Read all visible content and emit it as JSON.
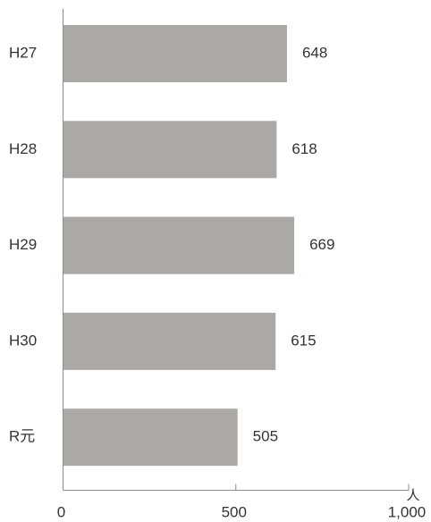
{
  "chart_data": {
    "type": "bar",
    "orientation": "horizontal",
    "categories": [
      "H27",
      "H28",
      "H29",
      "H30",
      "R元"
    ],
    "values": [
      648,
      618,
      669,
      615,
      505
    ],
    "xlim": [
      0,
      1000
    ],
    "x_ticks": [
      0,
      500,
      1000
    ],
    "x_tick_labels": [
      "0",
      "500",
      "1,000"
    ],
    "x_unit": "人",
    "bar_color": "#ABA8A6",
    "axis_color": "#8C8C8C",
    "grid": false,
    "legend": "none",
    "title": "",
    "xlabel": "",
    "ylabel": ""
  }
}
